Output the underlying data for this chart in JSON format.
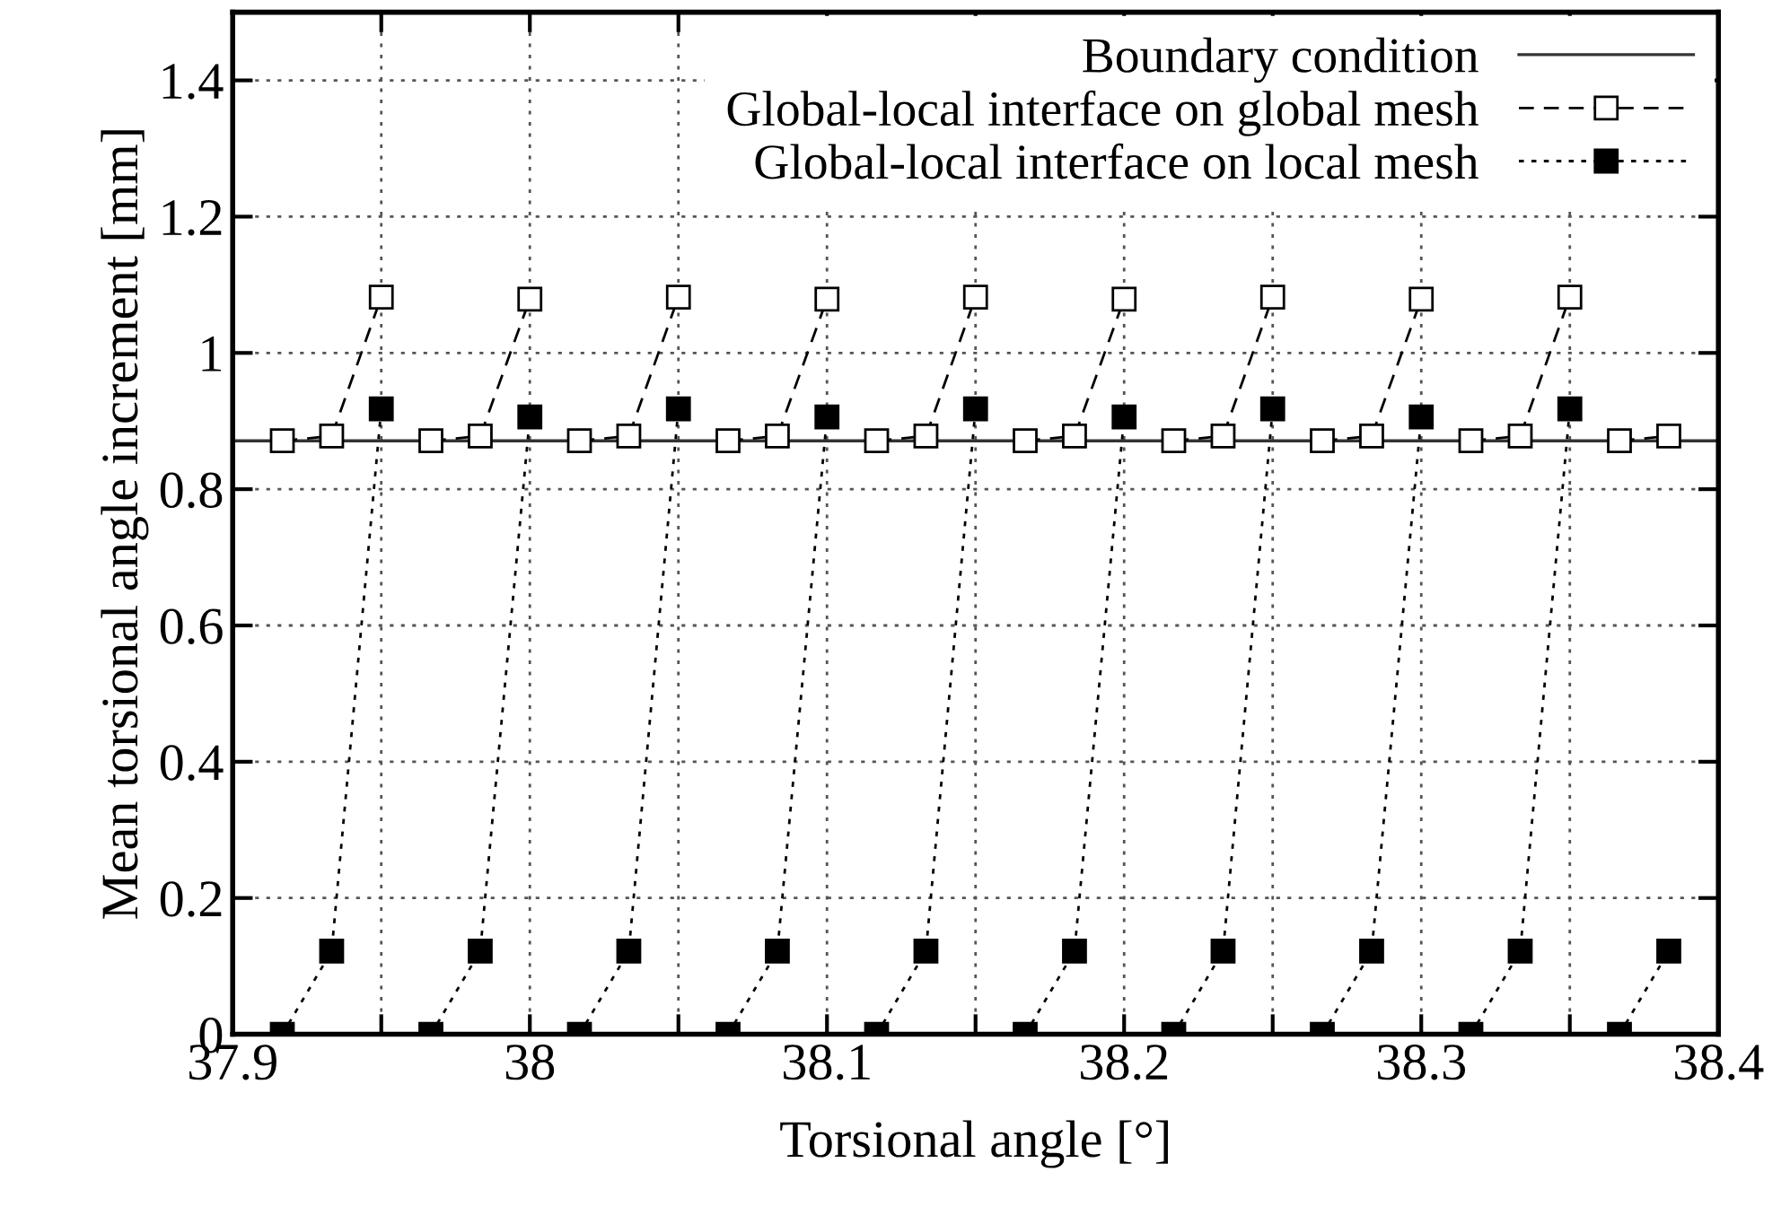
{
  "chart_data": {
    "type": "line",
    "xlabel": "Torsional angle [°]",
    "ylabel": "Mean torsional angle increment [mm]",
    "x": [
      37.9167,
      37.9333,
      37.95,
      37.9583,
      37.9667,
      37.9833,
      38.0,
      38.0083,
      38.0167,
      38.0333,
      38.05,
      38.0583,
      38.0667,
      38.0833,
      38.1,
      38.1083,
      38.1167,
      38.1333,
      38.15,
      38.1583,
      38.1667,
      38.1833,
      38.2,
      38.2083,
      38.2167,
      38.2333,
      38.25,
      38.2583,
      38.2667,
      38.2833,
      38.3,
      38.3083,
      38.3167,
      38.3333,
      38.35,
      38.3583,
      38.3667,
      38.3833
    ],
    "series": [
      {
        "name": "Global-local interface on global mesh",
        "color": "#000000",
        "line_style": "dashed",
        "values": [
          0.871,
          0.878,
          1.082,
          null,
          0.871,
          0.878,
          1.079,
          null,
          0.871,
          0.878,
          1.082,
          null,
          0.871,
          0.878,
          1.079,
          null,
          0.871,
          0.878,
          1.082,
          null,
          0.871,
          0.878,
          1.079,
          null,
          0.871,
          0.878,
          1.082,
          null,
          0.871,
          0.878,
          1.079,
          null,
          0.871,
          0.878,
          1.082,
          null,
          0.871,
          0.878
        ]
      },
      {
        "name": "Global-local interface on local mesh",
        "color": "#000000",
        "line_style": "dotted",
        "values": [
          0,
          0.122,
          0.918,
          null,
          0,
          0.122,
          0.906,
          null,
          0,
          0.122,
          0.918,
          null,
          0,
          0.122,
          0.906,
          null,
          0,
          0.122,
          0.918,
          null,
          0,
          0.122,
          0.906,
          null,
          0,
          0.122,
          0.918,
          null,
          0,
          0.122,
          0.906,
          null,
          0,
          0.122,
          0.918,
          null,
          0,
          0.122
        ]
      }
    ],
    "ref_lines": [
      {
        "axis": "y",
        "value": 0.871,
        "label": "Boundary condition",
        "color": "#333333",
        "line_style": "solid"
      }
    ],
    "marker": "square",
    "xlim": [
      37.9,
      38.4
    ],
    "xticks": [
      37.9,
      {
        "value": 37.95,
        "label": null
      },
      38,
      {
        "value": 38.05,
        "label": null
      },
      38.1,
      {
        "value": 38.15,
        "label": null
      },
      38.2,
      {
        "value": 38.25,
        "label": null
      },
      38.3,
      {
        "value": 38.35,
        "label": null
      },
      38.4
    ],
    "ylim": [
      0,
      1.5
    ],
    "yticks": [
      0,
      0.2,
      0.4,
      0.6,
      0.8,
      1,
      1.2,
      1.4
    ],
    "grid": true,
    "legend": "top right"
  }
}
